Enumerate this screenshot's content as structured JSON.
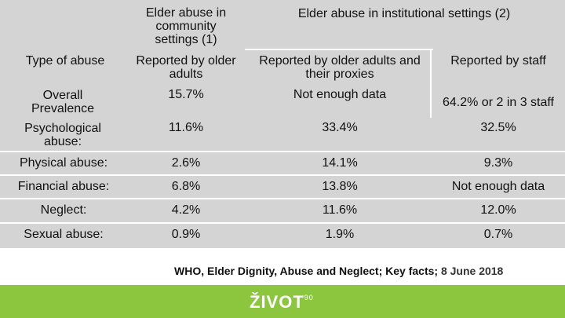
{
  "table": {
    "col_headers": {
      "type": "Type of abuse",
      "community_top": "Elder abuse in community settings (1)",
      "institutional_top": "Elder abuse in institutional settings (2)",
      "community_sub": "Reported by older adults",
      "institutional_sub_a": "Reported by older adults and their proxies",
      "institutional_sub_b": "Reported by staff"
    },
    "rows": [
      {
        "label": "Overall Prevalence",
        "community": "15.7%",
        "inst_a": "Not enough data",
        "inst_b": "64.2% or 2 in 3 staff"
      },
      {
        "label": "Psychological abuse:",
        "community": "11.6%",
        "inst_a": "33.4%",
        "inst_b": "32.5%"
      },
      {
        "label": "Physical abuse:",
        "community": "2.6%",
        "inst_a": "14.1%",
        "inst_b": "9.3%"
      },
      {
        "label": "Financial abuse:",
        "community": "6.8%",
        "inst_a": "13.8%",
        "inst_b": "Not enough data"
      },
      {
        "label": "Neglect:",
        "community": "4.2%",
        "inst_a": "11.6%",
        "inst_b": "12.0%"
      },
      {
        "label": "Sexual abuse:",
        "community": "0.9%",
        "inst_a": "1.9%",
        "inst_b": "0.7%"
      }
    ]
  },
  "source": {
    "text": "WHO, Elder Dignity, Abuse and Neglect; Key facts;",
    "date": "8 June 2018"
  },
  "footer": {
    "logo": "ŽIVOT",
    "logo_sup": "90",
    "bar_color": "#8cc63f"
  }
}
